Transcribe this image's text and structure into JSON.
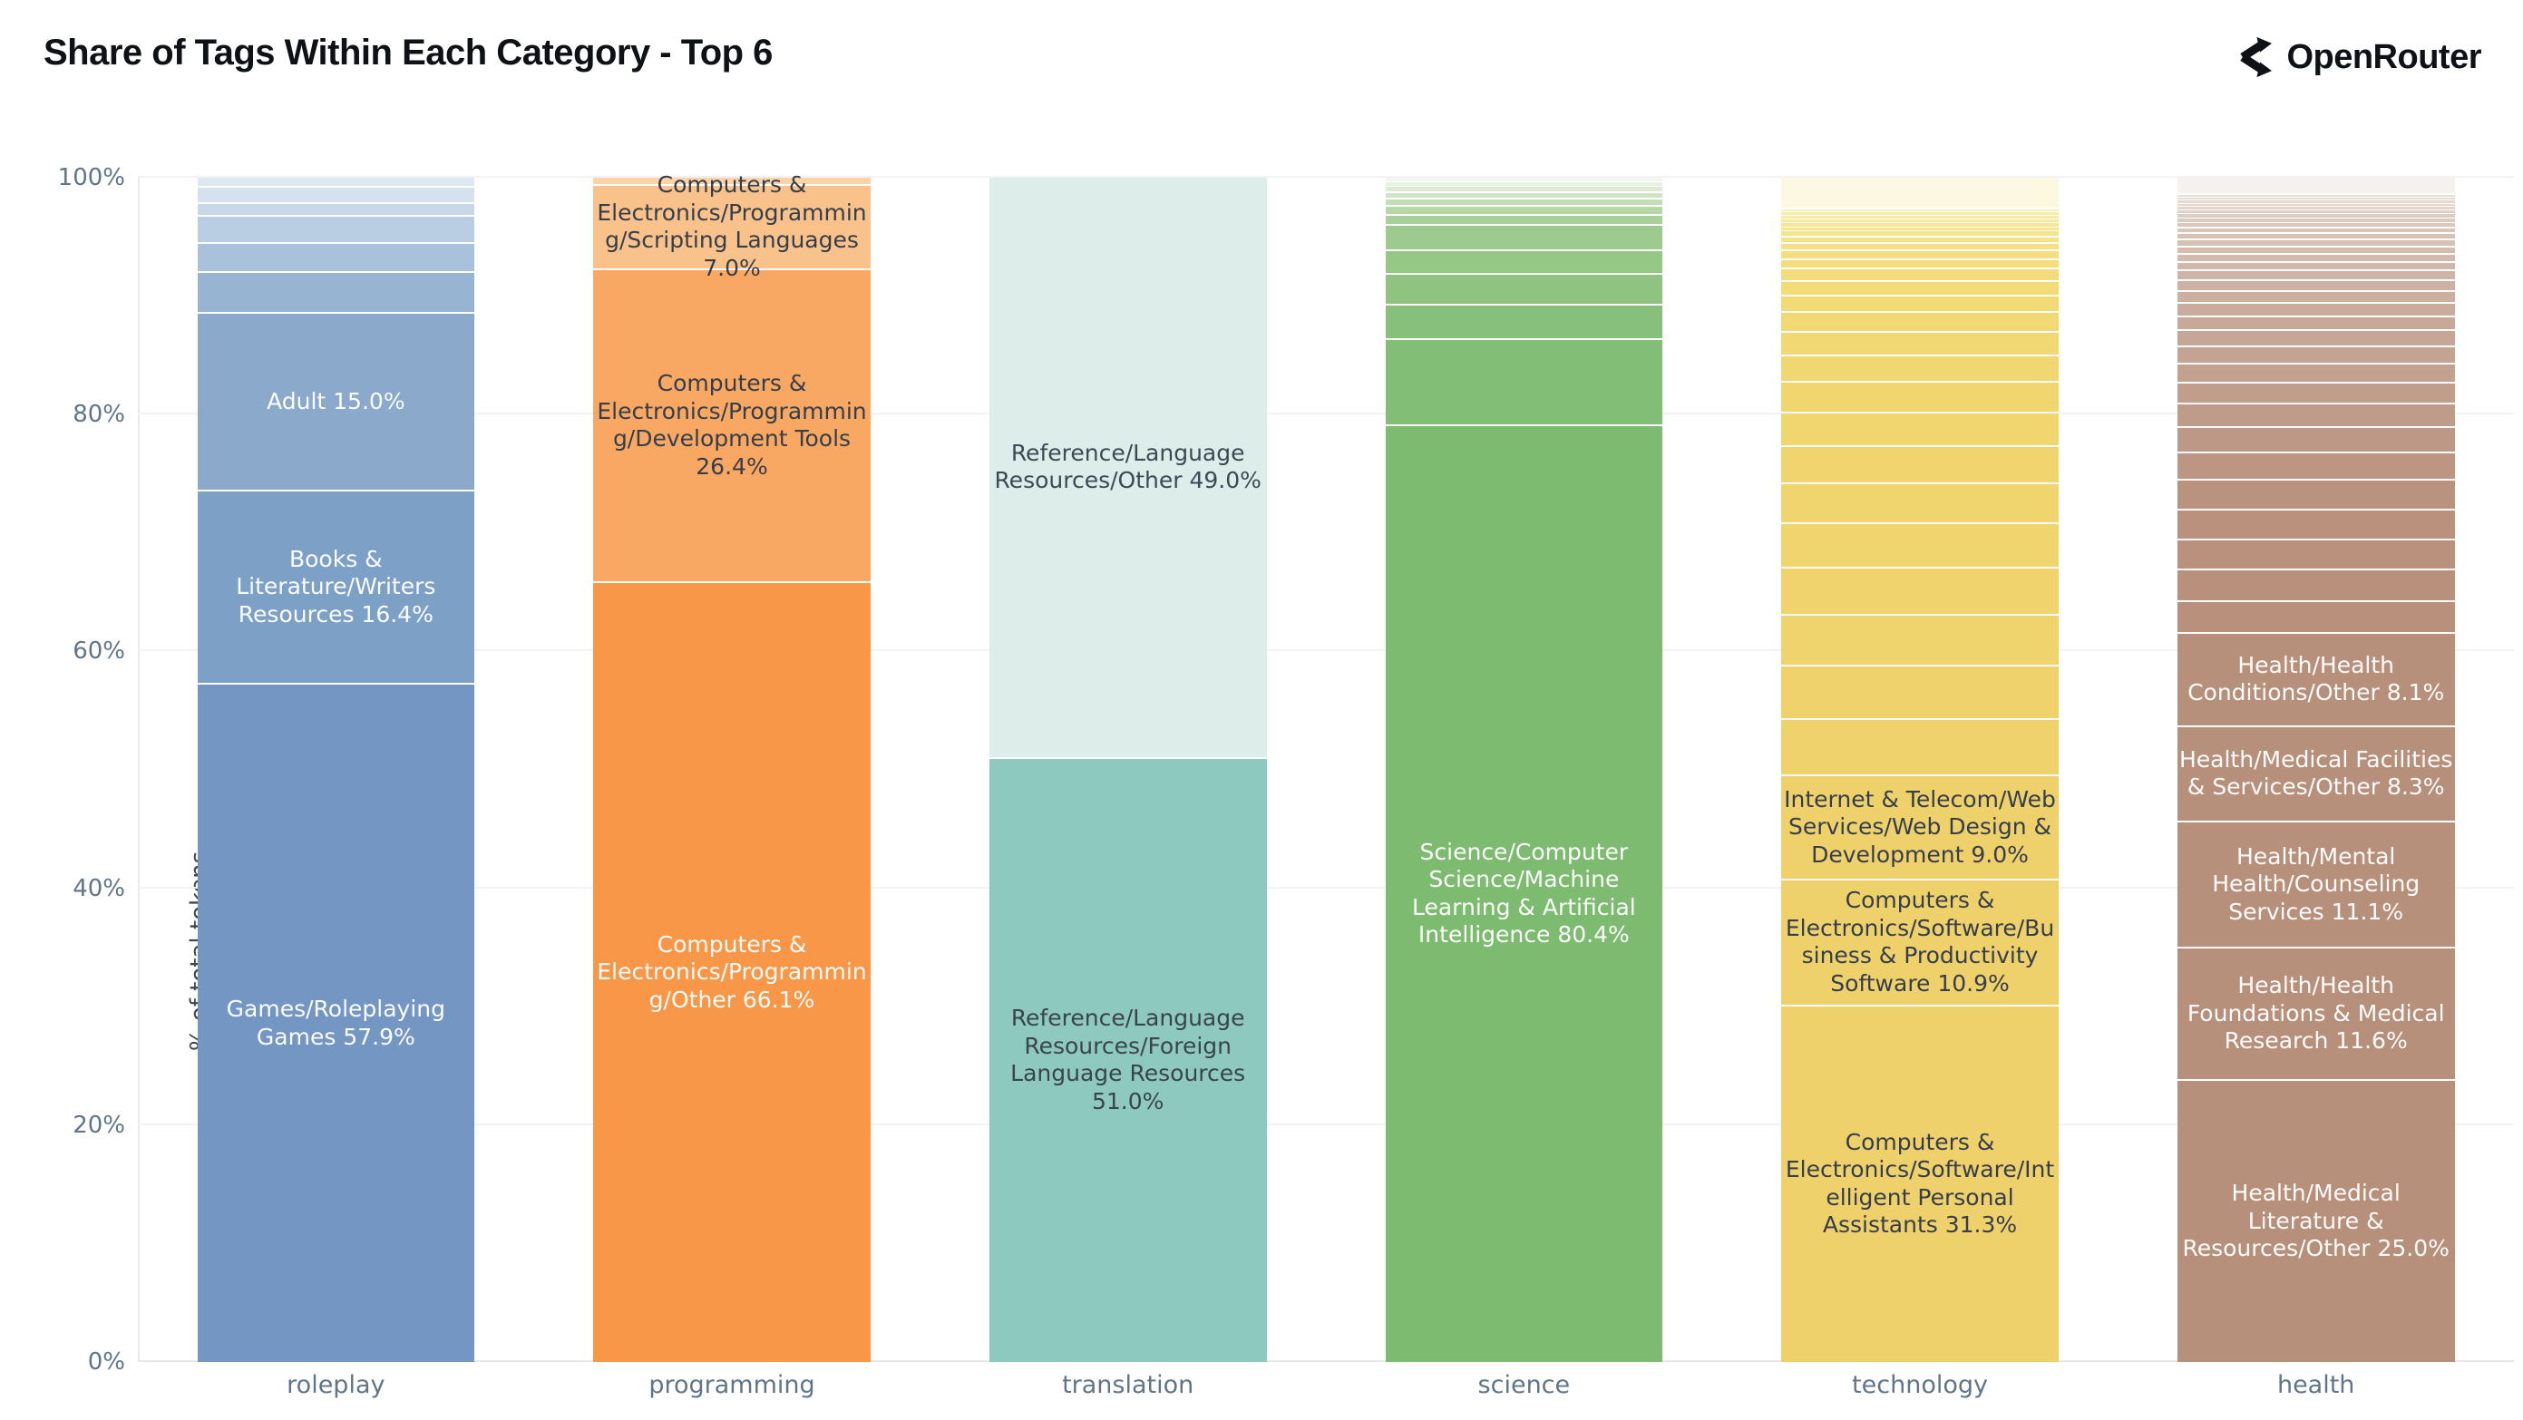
{
  "header": {
    "brand": "OpenRouter"
  },
  "chart_data": {
    "type": "bar",
    "stacked": true,
    "normalized_100": true,
    "title": "Share of Tags Within Each Category - Top 6",
    "xlabel": "",
    "ylabel": "% of total tokens",
    "ylim": [
      0,
      100
    ],
    "grid": "horizontal",
    "legend": "none",
    "y_ticks": [
      {
        "label": "0%",
        "value": 0
      },
      {
        "label": "20%",
        "value": 20
      },
      {
        "label": "40%",
        "value": 40
      },
      {
        "label": "60%",
        "value": 60
      },
      {
        "label": "80%",
        "value": 80
      },
      {
        "label": "100%",
        "value": 100
      }
    ],
    "categories": [
      "roleplay",
      "programming",
      "translation",
      "science",
      "technology",
      "health"
    ],
    "bars": [
      {
        "category": "roleplay",
        "segments": [
          {
            "value": 0.7,
            "color": "#dee8f2"
          },
          {
            "value": 1.2,
            "color": "#d5e1ee"
          },
          {
            "value": 1.0,
            "color": "#c9d8e9"
          },
          {
            "value": 2.1,
            "color": "#bacee3"
          },
          {
            "value": 2.4,
            "color": "#a9c1db"
          },
          {
            "value": 3.3,
            "color": "#97b4d2"
          },
          {
            "label": "Adult 15.0%",
            "value": 15.0,
            "color": "#8aa9cb",
            "text_color": "#fcfdfe"
          },
          {
            "label": "Books & Literature/Writers Resources 16.4%",
            "value": 16.4,
            "color": "#7da0c6",
            "text_color": "#fcfdfe"
          },
          {
            "label": "Games/Roleplaying Games 57.9%",
            "value": 57.9,
            "color": "#7396c2",
            "text_color": "#fcfdfe"
          }
        ]
      },
      {
        "category": "programming",
        "segments": [
          {
            "value": 0.5,
            "color": "#fbd3a6"
          },
          {
            "label": "Computers & Electronics/Programming/Scripting Languages 7.0%",
            "value": 7.0,
            "color": "#f9c28b",
            "text_color": "#363e4c"
          },
          {
            "label": "Computers & Electronics/Programming/Development Tools 26.4%",
            "value": 26.4,
            "color": "#f8a862",
            "text_color": "#363e4c"
          },
          {
            "label": "Computers & Electronics/Programming/Other 66.1%",
            "value": 66.1,
            "color": "#f79747",
            "text_color": "#fdfcfa"
          }
        ]
      },
      {
        "category": "translation",
        "segments": [
          {
            "label": "Reference/Language Resources/Other 49.0%",
            "value": 49.0,
            "color": "#dcedea",
            "text_color": "#3d4a55"
          },
          {
            "label": "Reference/Language Resources/Foreign Language Resources 51.0%",
            "value": 51.0,
            "color": "#8ec9c0",
            "text_color": "#3a444c"
          }
        ]
      },
      {
        "category": "science",
        "segments": [
          {
            "value": 0.3,
            "color": "#f2f8ef"
          },
          {
            "value": 0.3,
            "color": "#e7f2e2"
          },
          {
            "value": 0.4,
            "color": "#dbecd3"
          },
          {
            "value": 0.4,
            "color": "#cfe5c5"
          },
          {
            "value": 0.5,
            "color": "#c2deb6"
          },
          {
            "value": 0.6,
            "color": "#b5d7a8"
          },
          {
            "value": 0.7,
            "color": "#a8d099"
          },
          {
            "value": 2.0,
            "color": "#9ccb8d"
          },
          {
            "value": 1.9,
            "color": "#95c785"
          },
          {
            "value": 2.5,
            "color": "#8ec47f"
          },
          {
            "value": 2.8,
            "color": "#87c07a"
          },
          {
            "value": 7.2,
            "color": "#82be75"
          },
          {
            "label": "Science/Computer Science/Machine Learning & Artificial Intelligence 80.4%",
            "value": 80.4,
            "color": "#7cbb70",
            "text_color": "#fcfdfb"
          }
        ]
      },
      {
        "category": "technology",
        "segments": [
          {
            "value": 2.6,
            "color": "#fcf8e2"
          },
          {
            "value": 0.2,
            "color": "#f9efb4"
          },
          {
            "value": 0.2,
            "color": "#f8edaa"
          },
          {
            "value": 0.25,
            "color": "#f8eba2"
          },
          {
            "value": 0.25,
            "color": "#f7e99b"
          },
          {
            "value": 0.3,
            "color": "#f7e795"
          },
          {
            "value": 0.3,
            "color": "#f6e590"
          },
          {
            "value": 0.35,
            "color": "#f6e48b"
          },
          {
            "value": 0.4,
            "color": "#f5e287"
          },
          {
            "value": 0.5,
            "color": "#f5e183"
          },
          {
            "value": 0.6,
            "color": "#f4df7f"
          },
          {
            "value": 0.7,
            "color": "#f4de7c"
          },
          {
            "value": 0.9,
            "color": "#f3dc79"
          },
          {
            "value": 1.1,
            "color": "#f3db77"
          },
          {
            "value": 1.3,
            "color": "#f2da75"
          },
          {
            "value": 1.6,
            "color": "#f2d973"
          },
          {
            "value": 1.9,
            "color": "#f2d872"
          },
          {
            "value": 2.2,
            "color": "#f1d771"
          },
          {
            "value": 2.5,
            "color": "#f1d670"
          },
          {
            "value": 2.8,
            "color": "#f1d56f"
          },
          {
            "value": 3.1,
            "color": "#f0d56f"
          },
          {
            "value": 3.4,
            "color": "#f0d46e"
          },
          {
            "value": 3.7,
            "color": "#f0d46e"
          },
          {
            "value": 4.0,
            "color": "#f0d36d"
          },
          {
            "value": 4.3,
            "color": "#efd36d"
          },
          {
            "value": 4.6,
            "color": "#efd26c"
          },
          {
            "value": 4.75,
            "color": "#efd26c"
          },
          {
            "label": "Internet & Telecom/Web Services/Web Design & Development 9.0%",
            "value": 9.0,
            "color": "#efd16b",
            "text_color": "#363e4c"
          },
          {
            "label": "Computers & Electronics/Software/Business & Productivity Software 10.9%",
            "value": 10.9,
            "color": "#efd16b",
            "text_color": "#363e4c"
          },
          {
            "label": "Computers & Electronics/Software/Intelligent Personal Assistants 31.3%",
            "value": 31.3,
            "color": "#efd16b",
            "text_color": "#363e4c"
          }
        ]
      },
      {
        "category": "health",
        "segments": [
          {
            "value": 1.4,
            "color": "#f5f1ec"
          },
          {
            "value": 0.15,
            "color": "#eaded6"
          },
          {
            "value": 0.15,
            "color": "#e8dbd3"
          },
          {
            "value": 0.2,
            "color": "#e6d8cf"
          },
          {
            "value": 0.2,
            "color": "#e5d5cc"
          },
          {
            "value": 0.25,
            "color": "#e3d3c9"
          },
          {
            "value": 0.25,
            "color": "#e1d0c6"
          },
          {
            "value": 0.3,
            "color": "#dfcdc3"
          },
          {
            "value": 0.3,
            "color": "#ddcabf"
          },
          {
            "value": 0.35,
            "color": "#dcc7bc"
          },
          {
            "value": 0.35,
            "color": "#dac5b9"
          },
          {
            "value": 0.4,
            "color": "#d8c2b6"
          },
          {
            "value": 0.45,
            "color": "#d6bfb3"
          },
          {
            "value": 0.5,
            "color": "#d4bcaf"
          },
          {
            "value": 0.55,
            "color": "#d3baac"
          },
          {
            "value": 0.6,
            "color": "#d1b7a9"
          },
          {
            "value": 0.7,
            "color": "#cfb4a6"
          },
          {
            "value": 0.8,
            "color": "#cdb1a3"
          },
          {
            "value": 0.9,
            "color": "#ccaf9f"
          },
          {
            "value": 1.0,
            "color": "#caac9c"
          },
          {
            "value": 1.1,
            "color": "#c8a999"
          },
          {
            "value": 1.25,
            "color": "#c6a696"
          },
          {
            "value": 1.4,
            "color": "#c4a393"
          },
          {
            "value": 1.55,
            "color": "#c3a18f"
          },
          {
            "value": 1.7,
            "color": "#c19e8c"
          },
          {
            "value": 1.9,
            "color": "#bf9b89"
          },
          {
            "value": 2.1,
            "color": "#bd9886"
          },
          {
            "value": 2.3,
            "color": "#bc9682"
          },
          {
            "value": 2.5,
            "color": "#ba937f"
          },
          {
            "value": 2.45,
            "color": "#b9917d"
          },
          {
            "value": 2.55,
            "color": "#b9917d"
          },
          {
            "value": 2.6,
            "color": "#b8907c"
          },
          {
            "value": 2.7,
            "color": "#b8907c"
          },
          {
            "label": "Health/Health Conditions/Other 8.1%",
            "value": 8.1,
            "color": "#b7907b",
            "text_color": "#fdfcfb"
          },
          {
            "label": "Health/Medical Facilities & Services/Other 8.3%",
            "value": 8.3,
            "color": "#b7907b",
            "text_color": "#fdfcfb"
          },
          {
            "label": "Health/Mental Health/Counseling Services 11.1%",
            "value": 11.1,
            "color": "#b7907b",
            "text_color": "#fdfcfb"
          },
          {
            "label": "Health/Health Foundations & Medical Research 11.6%",
            "value": 11.6,
            "color": "#b7907b",
            "text_color": "#fdfcfb"
          },
          {
            "label": "Health/Medical Literature & Resources/Other 25.0%",
            "value": 25.0,
            "color": "#b7907b",
            "text_color": "#fdfcfb"
          }
        ]
      }
    ]
  }
}
